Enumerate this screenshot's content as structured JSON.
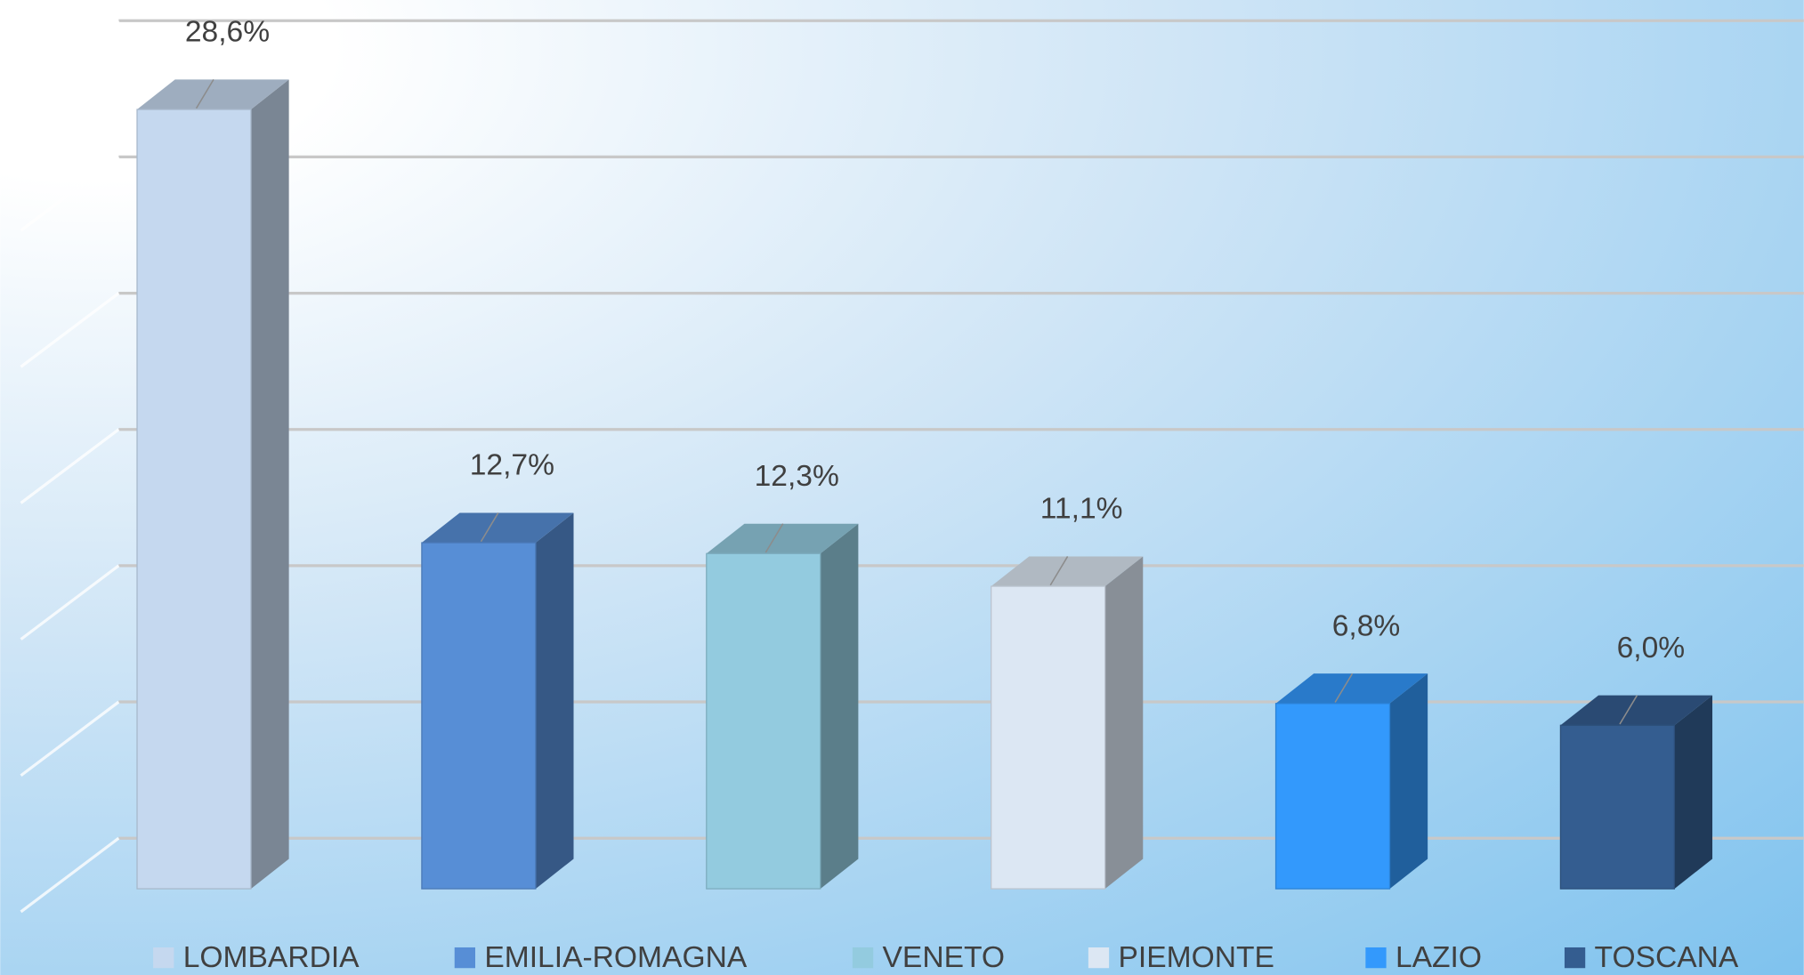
{
  "chart_data": {
    "type": "bar3d",
    "categories": [
      "LOMBARDIA",
      "EMILIA-ROMAGNA",
      "VENETO",
      "PIEMONTE",
      "LAZIO",
      "TOSCANA"
    ],
    "values": [
      28.6,
      12.7,
      12.3,
      11.1,
      6.8,
      6.0
    ],
    "value_labels": [
      "28,6%",
      "12,7%",
      "12,3%",
      "11,1%",
      "6,8%",
      "6,0%"
    ],
    "colors": [
      "#c5d8ef",
      "#578ed6",
      "#93cbdf",
      "#dce7f3",
      "#3399fc",
      "#345d90"
    ],
    "ylim": [
      0,
      30
    ],
    "yticks": [
      0,
      5,
      10,
      15,
      20,
      25,
      30
    ],
    "grid": true,
    "legend": "bottom"
  }
}
